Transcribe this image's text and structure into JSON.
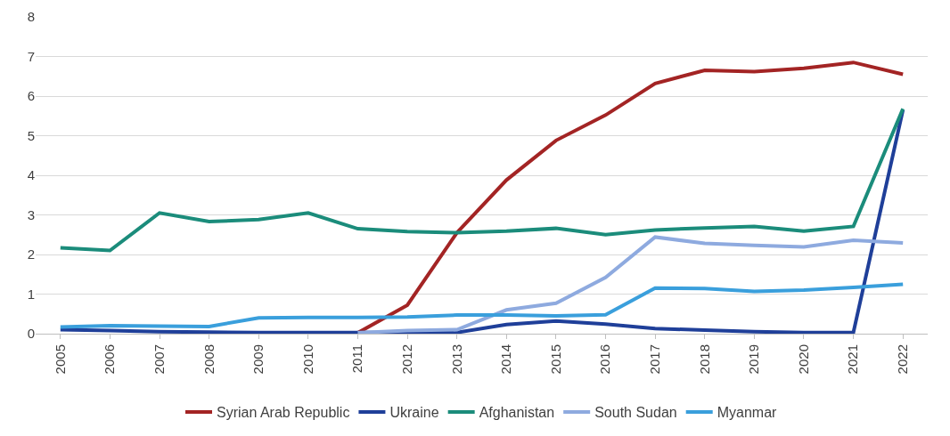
{
  "chart_data": {
    "type": "line",
    "categories": [
      "2005",
      "2006",
      "2007",
      "2008",
      "2009",
      "2010",
      "2011",
      "2012",
      "2013",
      "2014",
      "2015",
      "2016",
      "2017",
      "2018",
      "2019",
      "2020",
      "2021",
      "2022"
    ],
    "series": [
      {
        "name": "Syrian Arab Republic",
        "color": "#a32424",
        "values": [
          null,
          null,
          null,
          null,
          null,
          null,
          0.02,
          0.72,
          2.55,
          3.88,
          4.88,
          5.52,
          6.32,
          6.65,
          6.62,
          6.7,
          6.85,
          6.55
        ]
      },
      {
        "name": "Ukraine",
        "color": "#1f3f99",
        "values": [
          0.1,
          0.08,
          0.05,
          0.04,
          0.03,
          0.03,
          0.03,
          0.03,
          0.03,
          0.23,
          0.32,
          0.24,
          0.13,
          0.09,
          0.05,
          0.03,
          0.03,
          5.65
        ]
      },
      {
        "name": "Afghanistan",
        "color": "#1b8c7b",
        "values": [
          2.17,
          2.1,
          3.05,
          2.83,
          2.88,
          3.05,
          2.65,
          2.58,
          2.55,
          2.59,
          2.66,
          2.5,
          2.62,
          2.67,
          2.71,
          2.59,
          2.71,
          5.68
        ]
      },
      {
        "name": "South Sudan",
        "color": "#8eaadf",
        "values": [
          null,
          null,
          null,
          null,
          null,
          null,
          0.02,
          0.08,
          0.1,
          0.6,
          0.77,
          1.42,
          2.44,
          2.28,
          2.23,
          2.19,
          2.36,
          2.29
        ]
      },
      {
        "name": "Myanmar",
        "color": "#3a9fdc",
        "values": [
          0.17,
          0.2,
          0.19,
          0.18,
          0.4,
          0.41,
          0.41,
          0.42,
          0.47,
          0.47,
          0.45,
          0.48,
          1.15,
          1.14,
          1.07,
          1.1,
          1.17,
          1.25
        ]
      }
    ],
    "ylim": [
      0,
      8
    ],
    "yticks": [
      0,
      1,
      2,
      3,
      4,
      5,
      6,
      7,
      8
    ],
    "grid": "y",
    "legend": "bottom",
    "marker": "none",
    "line_style": "solid"
  }
}
